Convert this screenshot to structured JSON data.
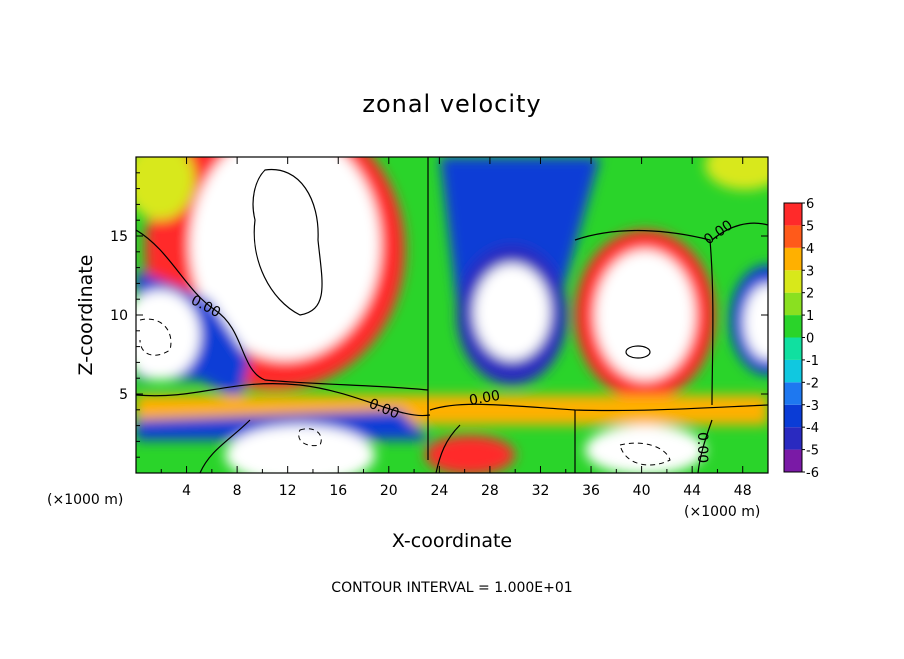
{
  "chart_data": {
    "type": "heatmap",
    "title": "zonal velocity",
    "xlabel": "X-coordinate",
    "ylabel": "Z-coordinate",
    "x_unit": "(×1000 m)",
    "x_unit_right": "(×1000 m)",
    "xlim": [
      0,
      50
    ],
    "ylim": [
      0,
      20
    ],
    "xticks": [
      4,
      8,
      12,
      16,
      20,
      24,
      28,
      32,
      36,
      40,
      44,
      48
    ],
    "yticks": [
      5,
      10,
      15
    ],
    "colorbar": {
      "levels": [
        -6,
        -5,
        -4,
        -3,
        -2,
        -1,
        0,
        1,
        2,
        3,
        4,
        5,
        6
      ],
      "colors": [
        "#7a1aa6",
        "#2a2ac0",
        "#0a3cd6",
        "#1e78f0",
        "#10c8e0",
        "#10e0a0",
        "#2ad42a",
        "#8ae020",
        "#d8e81a",
        "#ffb000",
        "#ff5a1a",
        "#ff2a2a",
        "#f7a0a0"
      ]
    },
    "contour_interval_note": "CONTOUR INTERVAL = 1.000E+01",
    "contour_labels": [
      "0.00",
      "0.00",
      "0.00",
      "0.00",
      "0.00"
    ]
  }
}
